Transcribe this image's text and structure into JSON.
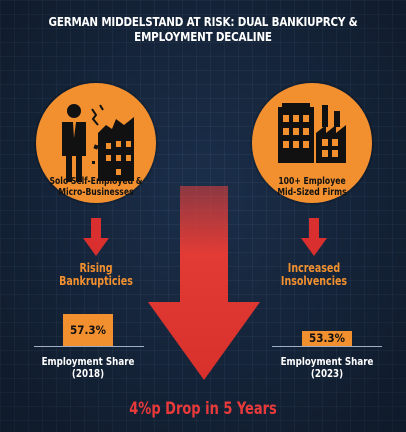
{
  "title": "GERMAN MIDDELSTAND AT RISK: DUAL BANKIUPRCY & EMPLOYMENT DECALINE",
  "colors": {
    "background": "#142236",
    "accent_orange": "#f2902f",
    "alert_red": "#e83a3a",
    "text_white": "#ffffff"
  },
  "left": {
    "icon": "person-and-crumbling-building-icon",
    "label_line1": "Solo Self-Employed &",
    "label_line2": "Micro-Businesses",
    "risk_line1": "Rising",
    "risk_line2": "Bankrupticies",
    "share_value": "57.3%",
    "share_label_line1": "Employment Share",
    "share_label_line2": "(2018)"
  },
  "right": {
    "icon": "factory-and-office-building-icon",
    "label_line1": "100+ Employee",
    "label_line2": "Mid-Sized Firms",
    "risk_line1": "Increased",
    "risk_line2": "Insolvencies",
    "share_value": "53.3%",
    "share_label_line1": "Employment Share",
    "share_label_line2": "(2023)"
  },
  "center": {
    "icon": "big-down-arrow-icon",
    "drop_text": "4%p Drop in 5 Years"
  }
}
